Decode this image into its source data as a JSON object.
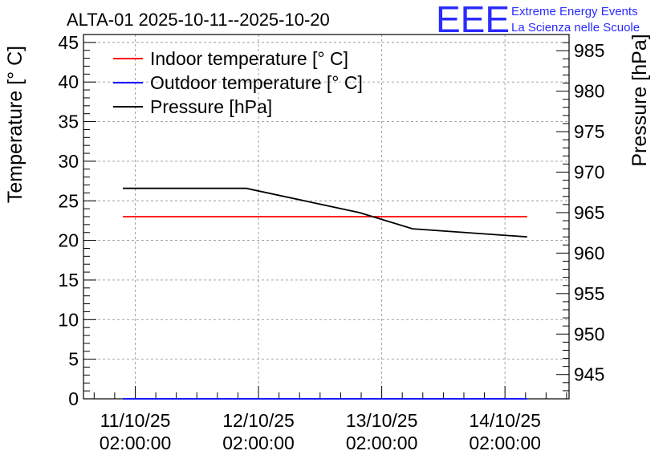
{
  "chart_data": {
    "type": "line",
    "title": "ALTA-01 2025-10-11--2025-10-20",
    "logo": {
      "mark": "EEE",
      "line1": "Extreme Energy Events",
      "line2": "La Scienza nelle Scuole",
      "color": "#2b2bff"
    },
    "ylabel": "Temperature [° C]",
    "y2label": "Pressure [hPa]",
    "ylim": [
      0,
      46
    ],
    "y2lim": [
      942,
      987
    ],
    "yticks": [
      0,
      5,
      10,
      15,
      20,
      25,
      30,
      35,
      40,
      45
    ],
    "y2ticks": [
      945,
      950,
      955,
      960,
      965,
      970,
      975,
      980,
      985
    ],
    "xlim": [
      10.58,
      14.52
    ],
    "xticks": [
      {
        "value": 11,
        "line1": "11/10/25",
        "line2": "02:00:00"
      },
      {
        "value": 12,
        "line1": "12/10/25",
        "line2": "02:00:00"
      },
      {
        "value": 13,
        "line1": "13/10/25",
        "line2": "02:00:00"
      },
      {
        "value": 14,
        "line1": "14/10/25",
        "line2": "02:00:00"
      }
    ],
    "grid": true,
    "legend_position": "top-left",
    "series": [
      {
        "name": "Indoor temperature [° C]",
        "color": "#ff0000",
        "axis": "left",
        "x": [
          10.9,
          14.18
        ],
        "y": [
          23,
          23
        ]
      },
      {
        "name": "Outdoor temperature [° C]",
        "color": "#0000ff",
        "axis": "left",
        "x": [
          10.9,
          14.18
        ],
        "y": [
          0,
          0
        ]
      },
      {
        "name": "Pressure [hPa]",
        "color": "#000000",
        "axis": "right",
        "x": [
          10.9,
          11.9,
          12.82,
          13.25,
          14.18
        ],
        "y": [
          968,
          968,
          965,
          963,
          962
        ]
      }
    ]
  }
}
